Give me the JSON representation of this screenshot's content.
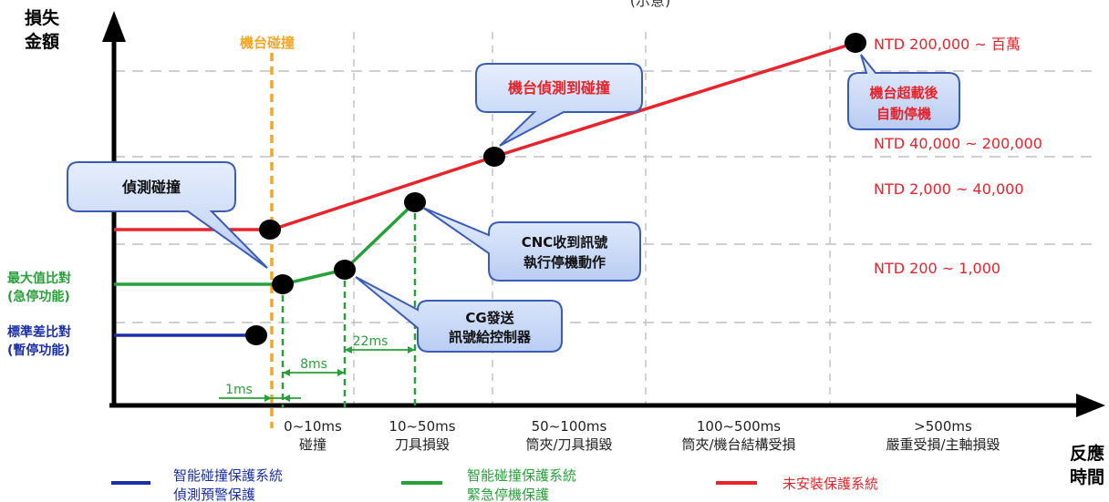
{
  "top_partial_label": "(示意)",
  "y_axis_label": [
    "損失",
    "金額"
  ],
  "x_axis_label": [
    "反應",
    "時間"
  ],
  "collision_marker_label": "機台碰撞",
  "cost_bands": [
    {
      "label": "NTD 200,000 ~ 百萬"
    },
    {
      "label": "NTD 40,000 ~ 200,000"
    },
    {
      "label": "NTD 2,000 ~ 40,000"
    },
    {
      "label": "NTD 200 ~ 1,000"
    }
  ],
  "time_bands": [
    {
      "range": "0~10ms",
      "desc": "碰撞"
    },
    {
      "range": "10~50ms",
      "desc": "刀具損毀"
    },
    {
      "range": "50~100ms",
      "desc": "筒夾/刀具損毀"
    },
    {
      "range": "100~500ms",
      "desc": "筒夾/機台結構受損"
    },
    {
      "range": ">500ms",
      "desc": "嚴重受損/主軸損毀"
    }
  ],
  "level_labels": {
    "green": [
      "最大值比對",
      "(急停功能)"
    ],
    "blue": [
      "標準差比對",
      "(暫停功能)"
    ]
  },
  "callouts": {
    "detect": [
      "偵測碰撞"
    ],
    "machine_detect": [
      "機台偵測到碰撞"
    ],
    "overload": [
      "機台超載後",
      "自動停機"
    ],
    "cnc": [
      "CNC收到訊號",
      "執行停機動作"
    ],
    "cg": [
      "CG發送",
      "訊號給控制器"
    ]
  },
  "intervals": [
    "1ms",
    "8ms",
    "22ms"
  ],
  "legend": [
    {
      "lines": [
        "智能碰撞保護系統",
        "偵測預警保護"
      ],
      "color": "#1a2fa8"
    },
    {
      "lines": [
        "智能碰撞保護系統",
        "緊急停機保護"
      ],
      "color": "#28a03a"
    },
    {
      "lines": [
        "未安裝保護系統"
      ],
      "color": "#e8232a"
    }
  ],
  "colors": {
    "red": "#e8232a",
    "green": "#28a03a",
    "blue": "#1a2fa8",
    "orange": "#f5a623",
    "callout_fill": "#c9d9f7",
    "callout_stroke": "#3a5bb8"
  }
}
